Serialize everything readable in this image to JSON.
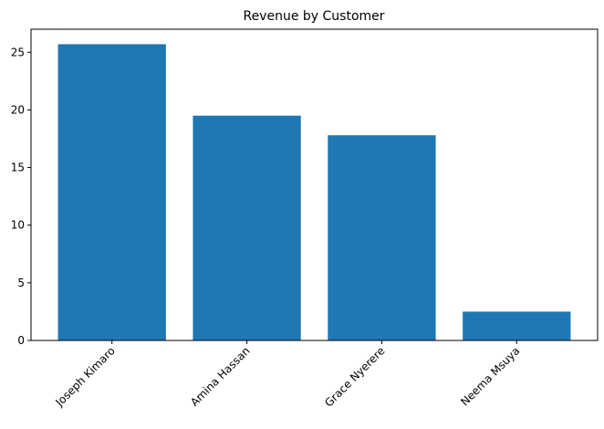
{
  "chart_data": {
    "type": "bar",
    "title": "Revenue by Customer",
    "xlabel": "",
    "ylabel": "",
    "categories": [
      "Joseph Kimaro",
      "Amina Hassan",
      "Grace Nyerere",
      "Neema Msuya"
    ],
    "values": [
      25.7,
      19.5,
      17.8,
      2.5
    ],
    "ylim": [
      0,
      27
    ],
    "yticks": [
      0,
      5,
      10,
      15,
      20,
      25
    ],
    "bar_color": "#1f77b4",
    "x_tick_rotation": 45,
    "grid": false,
    "legend": "none"
  }
}
